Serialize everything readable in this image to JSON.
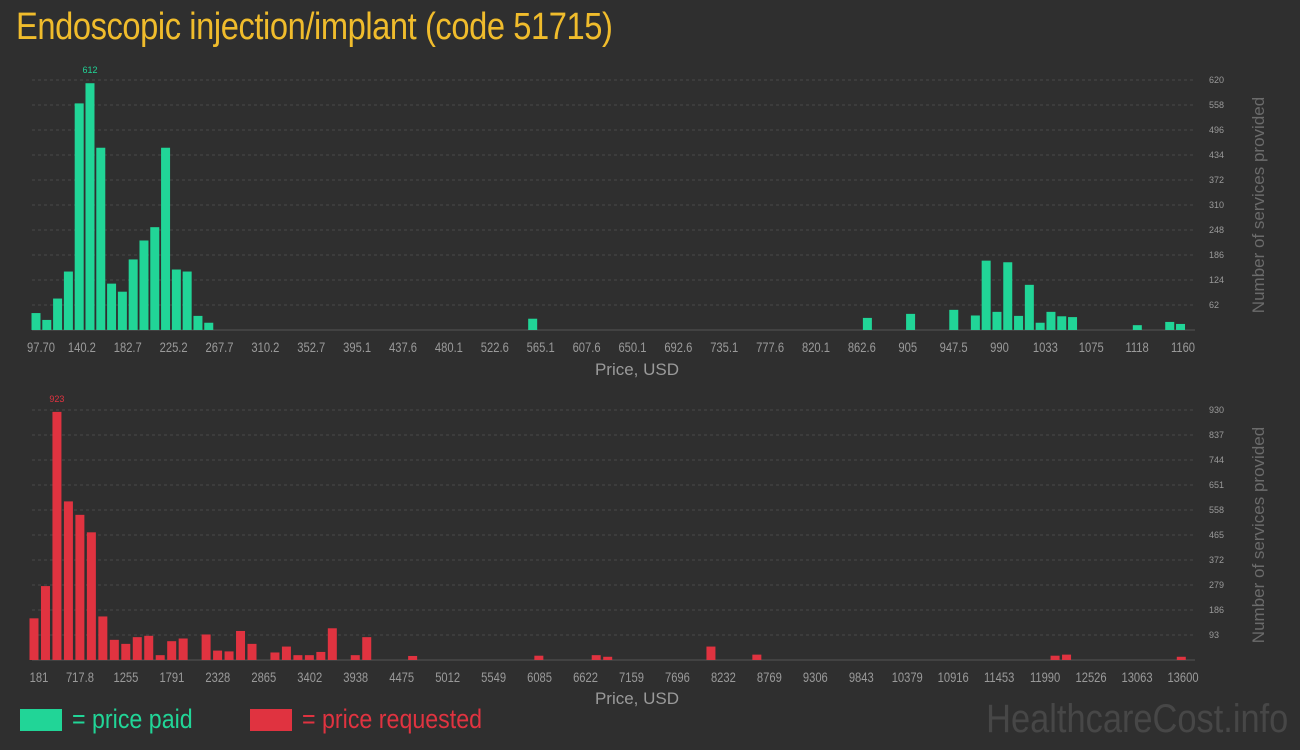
{
  "title": "Endoscopic injection/implant (code 51715)",
  "watermark": "HealthcareCost.info",
  "colors": {
    "paid": "#21d597",
    "requested": "#e03340",
    "axis_text": "#9a9a9a",
    "grid": "#4a4a4a",
    "title": "#f0bc2c"
  },
  "legend": {
    "paid": "= price paid",
    "requested": "= price requested"
  },
  "chart_data": [
    {
      "type": "bar",
      "name": "price paid",
      "color": "#21d597",
      "xlabel": "Price, USD",
      "ylabel": "Number of services provided",
      "xlim": [
        97.7,
        1160
      ],
      "ylim": [
        0,
        620
      ],
      "x_ticks": [
        "97.70",
        "140.2",
        "182.7",
        "225.2",
        "267.7",
        "310.2",
        "352.7",
        "395.1",
        "437.6",
        "480.1",
        "522.6",
        "565.1",
        "607.6",
        "650.1",
        "692.6",
        "735.1",
        "777.6",
        "820.1",
        "862.6",
        "905",
        "947.5",
        "990",
        "1033",
        "1075",
        "1118",
        "1160"
      ],
      "y_ticks": [
        "62",
        "124",
        "186",
        "248",
        "310",
        "372",
        "434",
        "496",
        "558",
        "620"
      ],
      "max_label": "612",
      "x": [
        97.7,
        107.7,
        117.7,
        127.7,
        137.7,
        147.7,
        157.7,
        167.7,
        177.7,
        187.7,
        197.7,
        207.7,
        217.7,
        227.7,
        237.7,
        247.7,
        257.7,
        277.7,
        557.7,
        867.7,
        907.7,
        947.7,
        967.7,
        977.7,
        987.7,
        997.7,
        1007.7,
        1017.7,
        1027.7,
        1037.7,
        1047.7,
        1057.7,
        1067.7,
        1077.7,
        1087.7,
        1097.7,
        1117.7,
        1147.7,
        1157.7
      ],
      "values": [
        42,
        25,
        78,
        145,
        562,
        612,
        452,
        115,
        95,
        175,
        222,
        255,
        452,
        150,
        145,
        35,
        18,
        0,
        28,
        30,
        40,
        50,
        36,
        172,
        45,
        168,
        35,
        112,
        18,
        45,
        34,
        32,
        0,
        0,
        0,
        0,
        12,
        20,
        15
      ]
    },
    {
      "type": "bar",
      "name": "price requested",
      "color": "#e03340",
      "xlabel": "Price, USD",
      "ylabel": "Number of services provided",
      "xlim": [
        181,
        13600
      ],
      "ylim": [
        0,
        930
      ],
      "x_ticks": [
        "181",
        "717.8",
        "1255",
        "1791",
        "2328",
        "2865",
        "3402",
        "3938",
        "4475",
        "5012",
        "5549",
        "6085",
        "6622",
        "7159",
        "7696",
        "8232",
        "8769",
        "9306",
        "9843",
        "10379",
        "10916",
        "11453",
        "11990",
        "12526",
        "13063",
        "13600"
      ],
      "y_ticks": [
        "93",
        "186",
        "279",
        "372",
        "465",
        "558",
        "651",
        "744",
        "837",
        "930"
      ],
      "max_label": "923",
      "x": [
        181,
        315,
        449,
        583,
        717,
        851,
        985,
        1119,
        1253,
        1387,
        1521,
        1655,
        1789,
        1923,
        2191,
        2325,
        2459,
        2593,
        2727,
        2995,
        3129,
        3263,
        3397,
        3531,
        3665,
        3933,
        4067,
        4603,
        6077,
        6747,
        6881,
        8087,
        8623,
        12106,
        12240,
        13580
      ],
      "values": [
        155,
        275,
        923,
        590,
        540,
        475,
        162,
        75,
        60,
        85,
        90,
        18,
        70,
        80,
        95,
        35,
        32,
        108,
        60,
        28,
        50,
        18,
        18,
        30,
        118,
        18,
        85,
        15,
        16,
        18,
        12,
        50,
        20,
        16,
        20,
        12
      ]
    }
  ]
}
